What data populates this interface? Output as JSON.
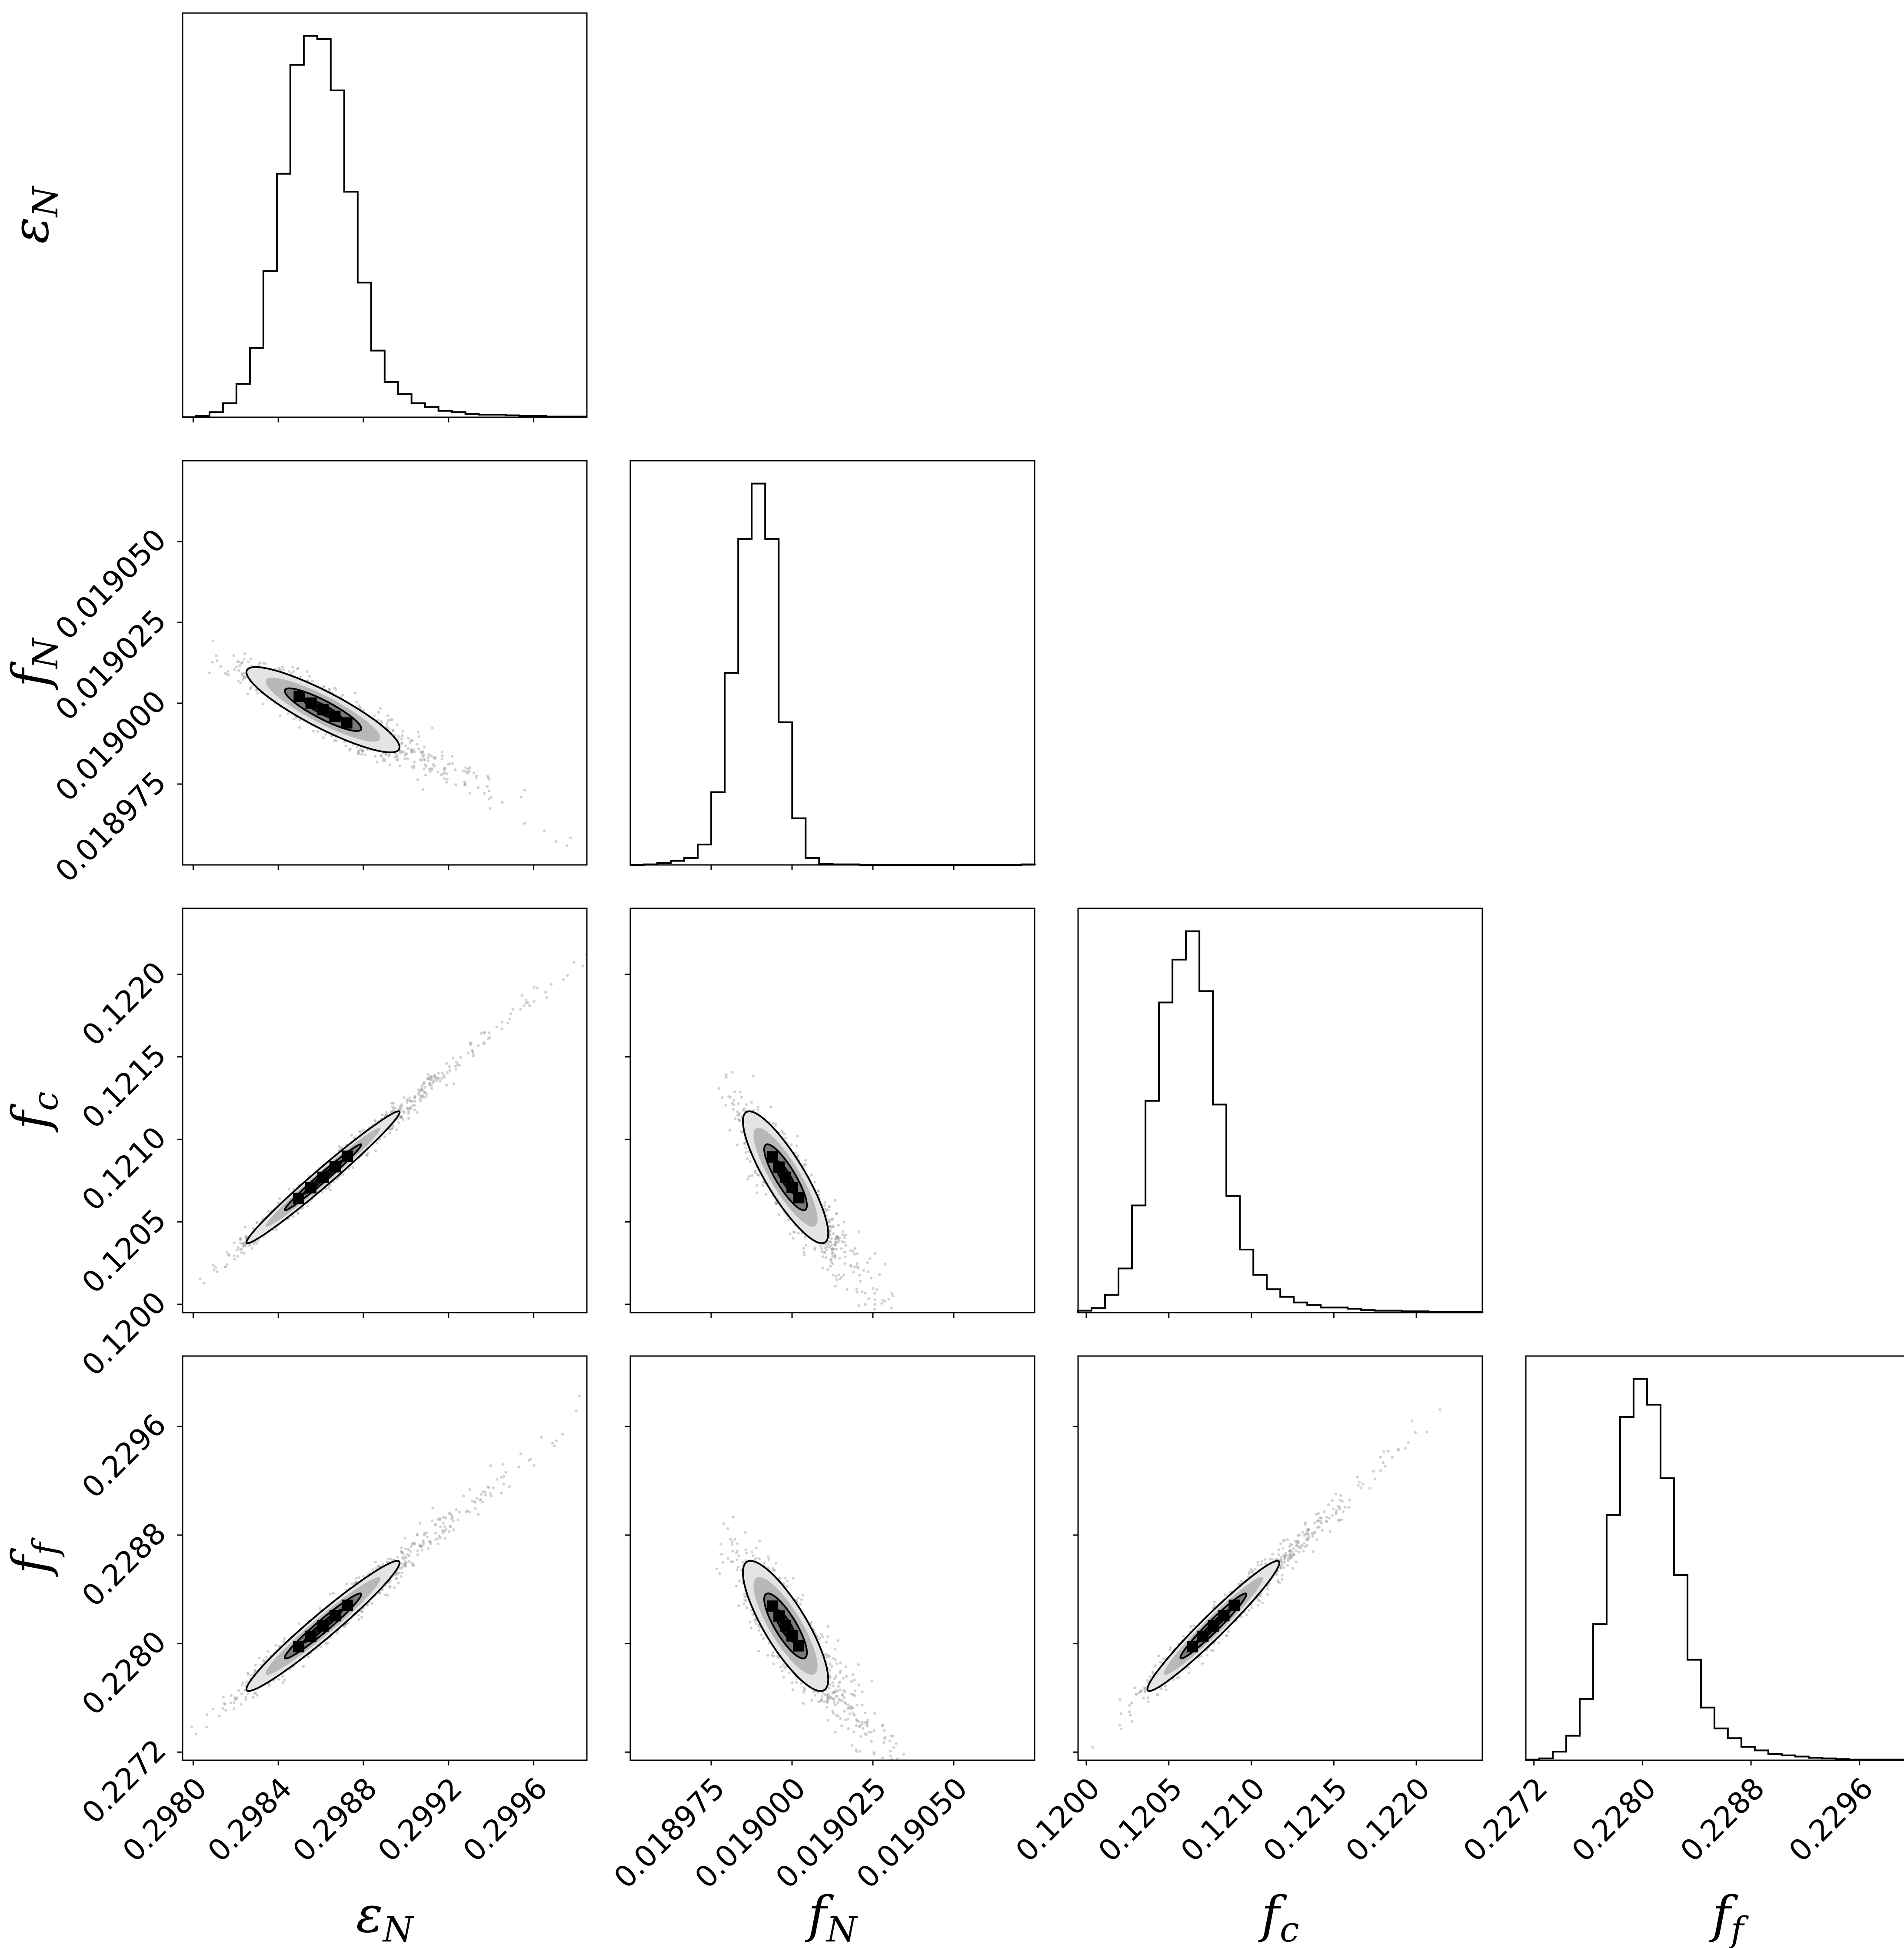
{
  "chart_data": {
    "type": "corner",
    "parameters": [
      {
        "key": "eN",
        "symbol": "ε",
        "sub": "N",
        "range": [
          0.29795,
          0.29985
        ],
        "ticks": [
          {
            "v": 0.298,
            "t": "0.2980"
          },
          {
            "v": 0.2984,
            "t": "0.2984"
          },
          {
            "v": 0.2988,
            "t": "0.2988"
          },
          {
            "v": 0.2992,
            "t": "0.2992"
          },
          {
            "v": 0.2996,
            "t": "0.2996"
          }
        ]
      },
      {
        "key": "fN",
        "symbol": "f",
        "sub": "N",
        "range": [
          0.01895,
          0.019075
        ],
        "ticks": [
          {
            "v": 0.018975,
            "t": "0.018975"
          },
          {
            "v": 0.019,
            "t": "0.019000"
          },
          {
            "v": 0.019025,
            "t": "0.019025"
          },
          {
            "v": 0.01905,
            "t": "0.019050"
          }
        ]
      },
      {
        "key": "fc",
        "symbol": "f",
        "sub": "c",
        "range": [
          0.11995,
          0.1224
        ],
        "ticks": [
          {
            "v": 0.12,
            "t": "0.1200"
          },
          {
            "v": 0.1205,
            "t": "0.1205"
          },
          {
            "v": 0.121,
            "t": "0.1210"
          },
          {
            "v": 0.1215,
            "t": "0.1215"
          },
          {
            "v": 0.122,
            "t": "0.1220"
          }
        ]
      },
      {
        "key": "ff",
        "symbol": "f",
        "sub": "f",
        "range": [
          0.22714,
          0.23012
        ],
        "ticks": [
          {
            "v": 0.2272,
            "t": "0.2272"
          },
          {
            "v": 0.228,
            "t": "0.2280"
          },
          {
            "v": 0.2288,
            "t": "0.2288"
          },
          {
            "v": 0.2296,
            "t": "0.2296"
          }
        ]
      }
    ],
    "histograms": [
      {
        "param": "eN",
        "edges_start": 0.29795,
        "bin_width": 6.33e-05,
        "counts": [
          0,
          2,
          8,
          22,
          52,
          108,
          228,
          380,
          550,
          595,
          590,
          510,
          352,
          210,
          104,
          55,
          36,
          22,
          16,
          10,
          8,
          5,
          4,
          4,
          3,
          2,
          2,
          1,
          1,
          1
        ]
      },
      {
        "param": "fN",
        "edges_start": 0.01895,
        "bin_width": 4.17e-06,
        "counts": [
          0,
          1,
          3,
          7,
          12,
          35,
          125,
          330,
          560,
          655,
          560,
          245,
          80,
          12,
          2,
          1,
          1,
          0,
          0,
          0,
          0,
          0,
          0,
          0,
          0,
          0,
          0,
          0,
          0,
          1
        ]
      },
      {
        "param": "fc",
        "edges_start": 0.11995,
        "bin_width": 8.17e-05,
        "counts": [
          3,
          7,
          28,
          70,
          170,
          336,
          492,
          560,
          605,
          510,
          330,
          185,
          100,
          60,
          37,
          25,
          16,
          12,
          8,
          8,
          6,
          4,
          3,
          3,
          2,
          2,
          1,
          1,
          1,
          1
        ]
      },
      {
        "param": "ff",
        "edges_start": 0.22714,
        "bin_width": 9.93e-05,
        "counts": [
          1,
          3,
          14,
          40,
          100,
          222,
          400,
          560,
          622,
          580,
          460,
          302,
          164,
          86,
          52,
          36,
          22,
          16,
          10,
          8,
          6,
          4,
          3,
          2,
          1,
          1,
          1,
          1,
          1,
          1
        ]
      }
    ],
    "posterior_2d": [
      {
        "x": "eN",
        "y": "fN",
        "center": [
          0.29861,
          0.018998
        ],
        "sd": [
          0.00018,
          6.6e-06
        ],
        "rho": -0.88,
        "n_samples": 1400
      },
      {
        "x": "eN",
        "y": "fc",
        "center": [
          0.29861,
          0.12077
        ],
        "sd": [
          0.00018,
          0.0002
        ],
        "rho": 0.985,
        "n_samples": 1400
      },
      {
        "x": "fN",
        "y": "fc",
        "center": [
          0.018998,
          0.12077
        ],
        "sd": [
          6.6e-06,
          0.0002
        ],
        "rho": -0.85,
        "n_samples": 1400
      },
      {
        "x": "eN",
        "y": "ff",
        "center": [
          0.29861,
          0.22813
        ],
        "sd": [
          0.00018,
          0.00024
        ],
        "rho": 0.97,
        "n_samples": 1400
      },
      {
        "x": "fN",
        "y": "ff",
        "center": [
          0.018998,
          0.22813
        ],
        "sd": [
          6.6e-06,
          0.00024
        ],
        "rho": -0.82,
        "n_samples": 1400
      },
      {
        "x": "fc",
        "y": "ff",
        "center": [
          0.12077,
          0.22813
        ],
        "sd": [
          0.0002,
          0.00024
        ],
        "rho": 0.97,
        "n_samples": 1400
      }
    ],
    "contour_levels_sigma": [
      0.5,
      1.0,
      1.5,
      2.0
    ]
  }
}
